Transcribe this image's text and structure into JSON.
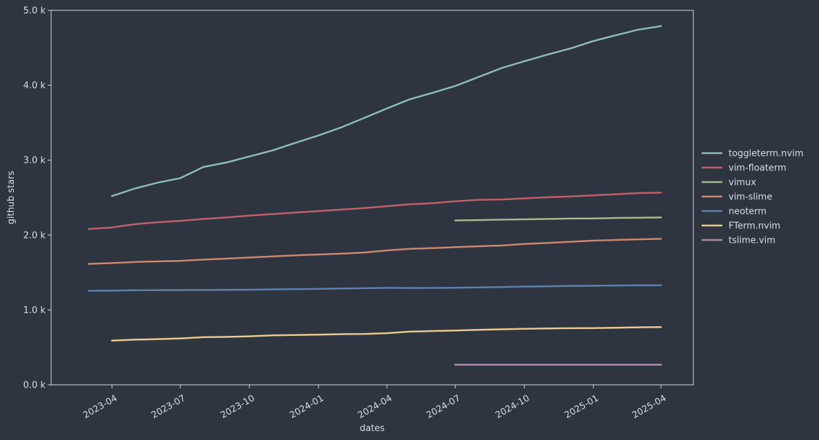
{
  "chart_data": {
    "type": "line",
    "xlabel": "dates",
    "ylabel": "github stars",
    "xlim": [
      "2023-01-10",
      "2025-05-14"
    ],
    "ylim": [
      0,
      5000
    ],
    "x_ticks": [
      "2023-04-01",
      "2023-07-01",
      "2023-10-01",
      "2024-01-01",
      "2024-04-01",
      "2024-07-01",
      "2024-10-01",
      "2025-01-01",
      "2025-04-01"
    ],
    "x_tick_labels": [
      "2023-04",
      "2023-07",
      "2023-10",
      "2024-01",
      "2024-04",
      "2024-07",
      "2024-10",
      "2025-01",
      "2025-04"
    ],
    "y_ticks": [
      0,
      1000,
      2000,
      3000,
      4000,
      5000
    ],
    "y_tick_labels": [
      "0.0 k",
      "1.0 k",
      "2.0 k",
      "3.0 k",
      "4.0 k",
      "5.0 k"
    ],
    "grid": false,
    "legend_position": "right",
    "colors": {
      "background": "#2e3440",
      "frame": "#d8dee9",
      "text": "#d8dee9"
    },
    "series": [
      {
        "name": "toggleterm.nvim",
        "color": "#8fbcbb",
        "x": [
          "2023-04-01",
          "2023-05-01",
          "2023-06-01",
          "2023-07-01",
          "2023-08-01",
          "2023-09-01",
          "2023-10-01",
          "2023-11-01",
          "2023-12-01",
          "2024-01-01",
          "2024-02-01",
          "2024-03-01",
          "2024-04-01",
          "2024-05-01",
          "2024-06-01",
          "2024-07-01",
          "2024-08-01",
          "2024-09-01",
          "2024-10-01",
          "2024-11-01",
          "2024-12-01",
          "2025-01-01",
          "2025-02-01",
          "2025-03-01",
          "2025-04-01"
        ],
        "y": [
          2520,
          2620,
          2700,
          2760,
          2910,
          2970,
          3050,
          3130,
          3230,
          3330,
          3440,
          3560,
          3690,
          3810,
          3900,
          3990,
          4110,
          4230,
          4320,
          4410,
          4490,
          4590,
          4670,
          4740,
          4790
        ]
      },
      {
        "name": "vim-floaterm",
        "color": "#bf616a",
        "x": [
          "2023-03-01",
          "2023-04-01",
          "2023-05-01",
          "2023-06-01",
          "2023-07-01",
          "2023-08-01",
          "2023-09-01",
          "2023-10-01",
          "2023-11-01",
          "2023-12-01",
          "2024-01-01",
          "2024-02-01",
          "2024-03-01",
          "2024-04-01",
          "2024-05-01",
          "2024-06-01",
          "2024-07-01",
          "2024-08-01",
          "2024-09-01",
          "2024-10-01",
          "2024-11-01",
          "2024-12-01",
          "2025-01-01",
          "2025-02-01",
          "2025-03-01",
          "2025-04-01"
        ],
        "y": [
          2080,
          2100,
          2145,
          2170,
          2190,
          2215,
          2235,
          2260,
          2280,
          2300,
          2320,
          2340,
          2360,
          2385,
          2410,
          2425,
          2450,
          2470,
          2475,
          2490,
          2505,
          2515,
          2530,
          2545,
          2560,
          2565
        ]
      },
      {
        "name": "vimux",
        "color": "#a3be8c",
        "x": [
          "2024-07-01",
          "2024-08-01",
          "2024-09-01",
          "2024-10-01",
          "2024-11-01",
          "2024-12-01",
          "2025-01-01",
          "2025-02-01",
          "2025-03-01",
          "2025-04-01"
        ],
        "y": [
          2195,
          2200,
          2205,
          2210,
          2215,
          2220,
          2222,
          2228,
          2230,
          2235
        ]
      },
      {
        "name": "vim-slime",
        "color": "#d08770",
        "x": [
          "2023-03-01",
          "2023-04-01",
          "2023-05-01",
          "2023-06-01",
          "2023-07-01",
          "2023-08-01",
          "2023-09-01",
          "2023-10-01",
          "2023-11-01",
          "2023-12-01",
          "2024-01-01",
          "2024-02-01",
          "2024-03-01",
          "2024-04-01",
          "2024-05-01",
          "2024-06-01",
          "2024-07-01",
          "2024-08-01",
          "2024-09-01",
          "2024-10-01",
          "2024-11-01",
          "2024-12-01",
          "2025-01-01",
          "2025-02-01",
          "2025-03-01",
          "2025-04-01"
        ],
        "y": [
          1615,
          1625,
          1640,
          1648,
          1655,
          1672,
          1685,
          1700,
          1715,
          1728,
          1740,
          1752,
          1765,
          1795,
          1815,
          1825,
          1838,
          1850,
          1860,
          1880,
          1895,
          1910,
          1925,
          1935,
          1942,
          1950
        ]
      },
      {
        "name": "neoterm",
        "color": "#5e81ac",
        "x": [
          "2023-03-01",
          "2023-04-01",
          "2023-05-01",
          "2023-06-01",
          "2023-07-01",
          "2023-08-01",
          "2023-09-01",
          "2023-10-01",
          "2023-11-01",
          "2023-12-01",
          "2024-01-01",
          "2024-02-01",
          "2024-03-01",
          "2024-04-01",
          "2024-05-01",
          "2024-06-01",
          "2024-07-01",
          "2024-08-01",
          "2024-09-01",
          "2024-10-01",
          "2024-11-01",
          "2024-12-01",
          "2025-01-01",
          "2025-02-01",
          "2025-03-01",
          "2025-04-01"
        ],
        "y": [
          1255,
          1258,
          1262,
          1264,
          1265,
          1266,
          1268,
          1270,
          1274,
          1277,
          1281,
          1285,
          1290,
          1295,
          1293,
          1294,
          1296,
          1300,
          1305,
          1312,
          1316,
          1320,
          1322,
          1326,
          1328,
          1330
        ]
      },
      {
        "name": "FTerm.nvim",
        "color": "#ebcb8b",
        "x": [
          "2023-04-01",
          "2023-05-01",
          "2023-06-01",
          "2023-07-01",
          "2023-08-01",
          "2023-09-01",
          "2023-10-01",
          "2023-11-01",
          "2023-12-01",
          "2024-01-01",
          "2024-02-01",
          "2024-03-01",
          "2024-04-01",
          "2024-05-01",
          "2024-06-01",
          "2024-07-01",
          "2024-08-01",
          "2024-09-01",
          "2024-10-01",
          "2024-11-01",
          "2024-12-01",
          "2025-01-01",
          "2025-02-01",
          "2025-03-01",
          "2025-04-01"
        ],
        "y": [
          590,
          603,
          610,
          620,
          636,
          640,
          648,
          660,
          665,
          670,
          677,
          680,
          690,
          710,
          718,
          725,
          735,
          741,
          748,
          752,
          756,
          758,
          762,
          768,
          772
        ]
      },
      {
        "name": "tslime.vim",
        "color": "#b48ead",
        "x": [
          "2024-07-01",
          "2024-08-01",
          "2024-09-01",
          "2024-10-01",
          "2024-11-01",
          "2024-12-01",
          "2025-01-01",
          "2025-02-01",
          "2025-03-01",
          "2025-04-01"
        ],
        "y": [
          268,
          268,
          268,
          268,
          268,
          268,
          268,
          268,
          268,
          268
        ]
      }
    ]
  }
}
